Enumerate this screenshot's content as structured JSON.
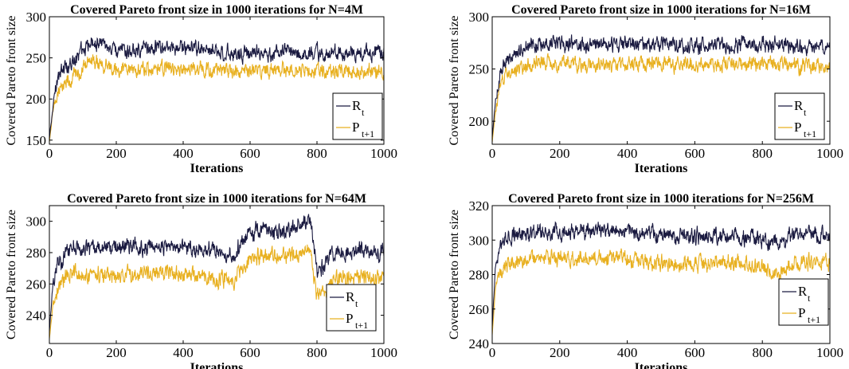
{
  "chart_data": [
    {
      "type": "line",
      "title": "Covered Pareto front size in 1000 iterations for N=4M",
      "xlabel": "Iterations",
      "ylabel": "Covered Pareto front size",
      "xlim": [
        0,
        1000
      ],
      "ylim": [
        145,
        300
      ],
      "xticks": [
        "0",
        "200",
        "400",
        "600",
        "800",
        "1000"
      ],
      "yticks": [
        "150",
        "200",
        "250",
        "300"
      ],
      "legend": {
        "location": "bottom-right",
        "entries": [
          {
            "main": "R",
            "sub": "t"
          },
          {
            "main": "P",
            "sub": "t+1"
          }
        ]
      },
      "series": [
        {
          "name": "R_t",
          "color": "#1a1a40",
          "x": [
            0,
            10,
            25,
            50,
            75,
            100,
            125,
            150,
            200,
            300,
            400,
            500,
            600,
            700,
            800,
            900,
            1000
          ],
          "values": [
            152,
            190,
            225,
            240,
            248,
            262,
            270,
            267,
            258,
            262,
            262,
            258,
            255,
            258,
            256,
            255,
            258
          ]
        },
        {
          "name": "P_t+1",
          "color": "#e8b020",
          "x": [
            0,
            10,
            25,
            50,
            75,
            100,
            125,
            150,
            200,
            300,
            400,
            500,
            600,
            700,
            800,
            900,
            1000
          ],
          "values": [
            148,
            180,
            210,
            222,
            230,
            238,
            244,
            242,
            237,
            236,
            238,
            235,
            234,
            235,
            234,
            233,
            234
          ]
        }
      ]
    },
    {
      "type": "line",
      "title": "Covered Pareto front size in 1000 iterations for N=16M",
      "xlabel": "Iterations",
      "ylabel": "Covered Pareto front size",
      "xlim": [
        0,
        1000
      ],
      "ylim": [
        178,
        300
      ],
      "xticks": [
        "0",
        "200",
        "400",
        "600",
        "800",
        "1000"
      ],
      "yticks": [
        "200",
        "250",
        "300"
      ],
      "legend": {
        "location": "bottom-right",
        "entries": [
          {
            "main": "R",
            "sub": "t"
          },
          {
            "main": "P",
            "sub": "t+1"
          }
        ]
      },
      "series": [
        {
          "name": "R_t",
          "color": "#1a1a40",
          "x": [
            0,
            10,
            25,
            50,
            75,
            100,
            150,
            200,
            300,
            400,
            500,
            600,
            700,
            800,
            900,
            1000
          ],
          "values": [
            185,
            220,
            250,
            262,
            268,
            272,
            274,
            275,
            272,
            274,
            273,
            272,
            274,
            273,
            271,
            272
          ]
        },
        {
          "name": "P_t+1",
          "color": "#e8b020",
          "x": [
            0,
            10,
            25,
            50,
            75,
            100,
            150,
            200,
            300,
            400,
            500,
            600,
            700,
            800,
            900,
            1000
          ],
          "values": [
            180,
            210,
            238,
            246,
            250,
            254,
            256,
            256,
            253,
            255,
            254,
            253,
            255,
            254,
            252,
            252
          ]
        }
      ]
    },
    {
      "type": "line",
      "title": "Covered Pareto front size in 1000 iterations for N=64M",
      "xlabel": "Iterations",
      "ylabel": "Covered Pareto front size",
      "xlim": [
        0,
        1000
      ],
      "ylim": [
        222,
        310
      ],
      "xticks": [
        "0",
        "200",
        "400",
        "600",
        "800",
        "1000"
      ],
      "yticks": [
        "240",
        "260",
        "280",
        "300"
      ],
      "legend": {
        "location": "bottom-right",
        "entries": [
          {
            "main": "R",
            "sub": "t"
          },
          {
            "main": "P",
            "sub": "t+1"
          }
        ]
      },
      "series": [
        {
          "name": "R_t",
          "color": "#1a1a40",
          "x": [
            0,
            10,
            25,
            50,
            75,
            100,
            200,
            300,
            400,
            500,
            550,
            600,
            650,
            700,
            750,
            780,
            800,
            850,
            900,
            1000
          ],
          "values": [
            230,
            258,
            272,
            280,
            285,
            282,
            283,
            284,
            282,
            280,
            279,
            293,
            295,
            293,
            296,
            303,
            268,
            280,
            281,
            280
          ]
        },
        {
          "name": "P_t+1",
          "color": "#e8b020",
          "x": [
            0,
            10,
            25,
            50,
            75,
            100,
            200,
            300,
            400,
            500,
            550,
            600,
            650,
            700,
            750,
            780,
            800,
            850,
            900,
            1000
          ],
          "values": [
            225,
            246,
            258,
            264,
            268,
            265,
            266,
            267,
            266,
            264,
            263,
            276,
            278,
            277,
            279,
            284,
            250,
            262,
            264,
            263
          ]
        }
      ]
    },
    {
      "type": "line",
      "title": "Covered Pareto front size in 1000 iterations for N=256M",
      "xlabel": "Iterations",
      "ylabel": "Covered Pareto front size",
      "xlim": [
        0,
        1000
      ],
      "ylim": [
        240,
        320
      ],
      "xticks": [
        "0",
        "200",
        "400",
        "600",
        "800",
        "1000"
      ],
      "yticks": [
        "240",
        "260",
        "280",
        "300",
        "320"
      ],
      "legend": {
        "location": "bottom-right",
        "entries": [
          {
            "main": "R",
            "sub": "t"
          },
          {
            "main": "P",
            "sub": "t+1"
          }
        ]
      },
      "series": [
        {
          "name": "R_t",
          "color": "#1a1a40",
          "x": [
            0,
            10,
            25,
            50,
            75,
            100,
            150,
            200,
            300,
            400,
            500,
            600,
            700,
            800,
            850,
            900,
            1000
          ],
          "values": [
            250,
            285,
            298,
            302,
            303,
            304,
            305,
            304,
            306,
            305,
            303,
            302,
            303,
            301,
            298,
            304,
            304
          ]
        },
        {
          "name": "P_t+1",
          "color": "#e8b020",
          "x": [
            0,
            10,
            25,
            50,
            75,
            100,
            150,
            200,
            300,
            400,
            500,
            600,
            700,
            800,
            850,
            900,
            1000
          ],
          "values": [
            245,
            275,
            284,
            287,
            288,
            289,
            290,
            289,
            290,
            289,
            287,
            286,
            287,
            285,
            281,
            288,
            288
          ]
        }
      ]
    }
  ]
}
